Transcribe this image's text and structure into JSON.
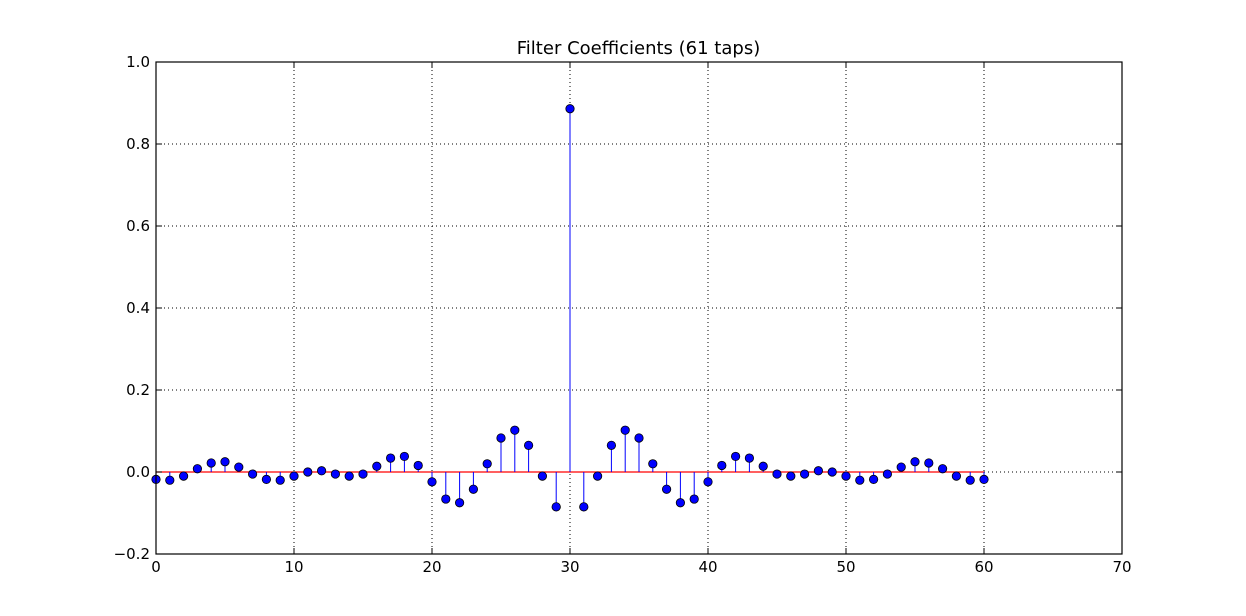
{
  "chart_data": {
    "type": "stem",
    "title": "Filter Coefficients (61 taps)",
    "xlabel": "",
    "ylabel": "",
    "xlim": [
      0,
      70
    ],
    "ylim": [
      -0.2,
      1.0
    ],
    "xticks": [
      0,
      10,
      20,
      30,
      40,
      50,
      60,
      70
    ],
    "yticks": [
      -0.2,
      0.0,
      0.2,
      0.4,
      0.6,
      0.8,
      1.0
    ],
    "ytick_labels": [
      "−0.2",
      "0.0",
      "0.2",
      "0.4",
      "0.6",
      "0.8",
      "1.0"
    ],
    "xtick_labels": [
      "0",
      "10",
      "20",
      "30",
      "40",
      "50",
      "60",
      "70"
    ],
    "grid": true,
    "colors": {
      "marker": "#0000ff",
      "stem": "#0000ff",
      "baseline": "#ff0000",
      "frame": "#000000",
      "grid": "#000000"
    },
    "series": [
      {
        "x": [
          0,
          1,
          2,
          3,
          4,
          5,
          6,
          7,
          8,
          9,
          10,
          11,
          12,
          13,
          14,
          15,
          16,
          17,
          18,
          19,
          20,
          21,
          22,
          23,
          24,
          25,
          26,
          27,
          28,
          29,
          30,
          31,
          32,
          33,
          34,
          35,
          36,
          37,
          38,
          39,
          40,
          41,
          42,
          43,
          44,
          45,
          46,
          47,
          48,
          49,
          50,
          51,
          52,
          53,
          54,
          55,
          56,
          57,
          58,
          59,
          60
        ],
        "values": [
          -0.018,
          -0.02,
          -0.01,
          0.008,
          0.022,
          0.025,
          0.012,
          -0.005,
          -0.018,
          -0.02,
          -0.01,
          0.0,
          0.003,
          -0.005,
          -0.01,
          -0.005,
          0.014,
          0.034,
          0.038,
          0.016,
          -0.024,
          -0.066,
          -0.075,
          -0.042,
          0.02,
          0.083,
          0.102,
          0.065,
          -0.01,
          -0.085,
          0.886,
          -0.085,
          -0.01,
          0.065,
          0.102,
          0.083,
          0.02,
          -0.042,
          -0.075,
          -0.066,
          -0.024,
          0.016,
          0.038,
          0.034,
          0.014,
          -0.005,
          -0.01,
          -0.005,
          0.003,
          0.0,
          -0.01,
          -0.02,
          -0.018,
          -0.005,
          0.012,
          0.025,
          0.022,
          0.008,
          -0.01,
          -0.02,
          -0.018
        ]
      }
    ]
  }
}
